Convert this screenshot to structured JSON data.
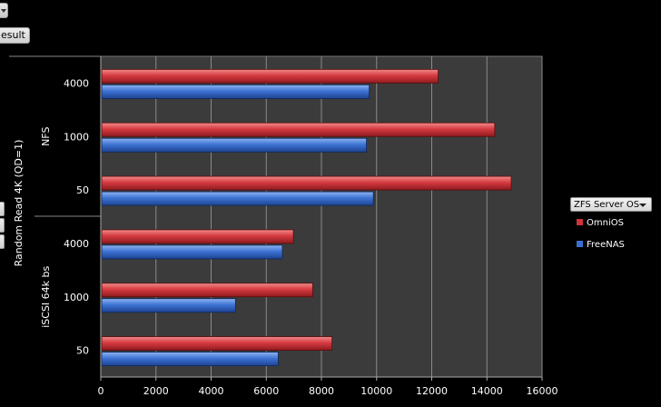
{
  "controls": {
    "result_label": "esult"
  },
  "legend": {
    "title": "ZFS Server OS",
    "items": [
      {
        "label": "OmniOS",
        "color": "#d0343a"
      },
      {
        "label": "FreeNAS",
        "color": "#3a6fd0"
      }
    ]
  },
  "chart_data": {
    "type": "bar",
    "orientation": "horizontal",
    "y_axis_title": "Random Read 4K (QD=1)",
    "groups": [
      {
        "name": "NFS",
        "categories": [
          "4000",
          "1000",
          "50"
        ]
      },
      {
        "name": "iSCSI 64k bs",
        "categories": [
          "4000",
          "1000",
          "50"
        ]
      }
    ],
    "series": [
      {
        "name": "OmniOS",
        "color": "#d0343a",
        "values": [
          12200,
          14250,
          14850,
          6950,
          7650,
          8350
        ]
      },
      {
        "name": "FreeNAS",
        "color": "#3a6fd0",
        "values": [
          9700,
          9600,
          9850,
          6550,
          4850,
          6400
        ]
      }
    ],
    "xlim": [
      0,
      16000
    ],
    "xticks": [
      0,
      2000,
      4000,
      6000,
      8000,
      10000,
      12000,
      14000,
      16000
    ],
    "grid": true,
    "legend_position": "right"
  }
}
